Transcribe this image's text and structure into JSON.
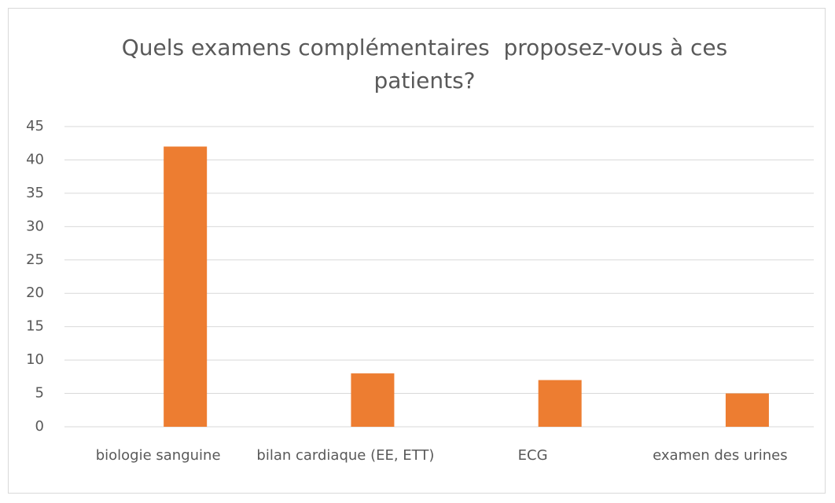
{
  "chart_data": {
    "type": "bar",
    "title": "Quels examens complémentaires  proposez-vous à ces patients?",
    "categories": [
      "biologie sanguine",
      "bilan cardiaque (EE, ETT)",
      "ECG",
      "examen des urines"
    ],
    "values": [
      42,
      8,
      7,
      5
    ],
    "color": "#ED7D31",
    "ylim": [
      0,
      45
    ],
    "yticks": [
      0,
      5,
      10,
      15,
      20,
      25,
      30,
      35,
      40,
      45
    ],
    "grid": true
  }
}
